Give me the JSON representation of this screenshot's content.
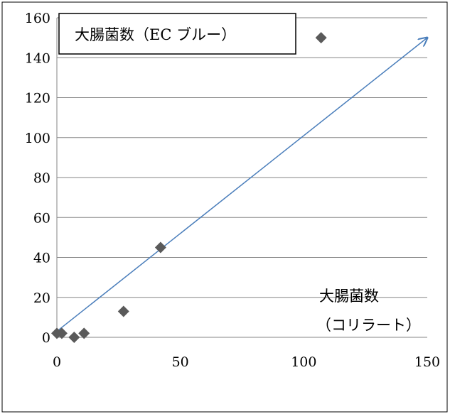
{
  "chart_data": {
    "type": "scatter",
    "title": "大腸菌数（EC ブルー）",
    "xlabel_line1": "大腸菌数",
    "xlabel_line2": "（コリラート）",
    "xlim": [
      0,
      150
    ],
    "ylim": [
      0,
      160
    ],
    "x_ticks": [
      0,
      50,
      100,
      150
    ],
    "y_ticks": [
      0,
      20,
      40,
      60,
      80,
      100,
      120,
      140,
      160
    ],
    "grid": "horizontal",
    "series": [
      {
        "points": [
          {
            "x": 0,
            "y": 2
          },
          {
            "x": 2,
            "y": 2
          },
          {
            "x": 7,
            "y": 0
          },
          {
            "x": 11,
            "y": 2
          },
          {
            "x": 27,
            "y": 13
          },
          {
            "x": 42,
            "y": 45
          },
          {
            "x": 107,
            "y": 150
          }
        ]
      }
    ],
    "reference_line": {
      "from": {
        "x": 0,
        "y": 3
      },
      "to": {
        "x": 150,
        "y": 150
      }
    },
    "colors": {
      "marker": "#5a5a5a",
      "line": "#4a7ebb",
      "grid": "#868686",
      "axis": "#868686",
      "frame": "#000000"
    }
  }
}
